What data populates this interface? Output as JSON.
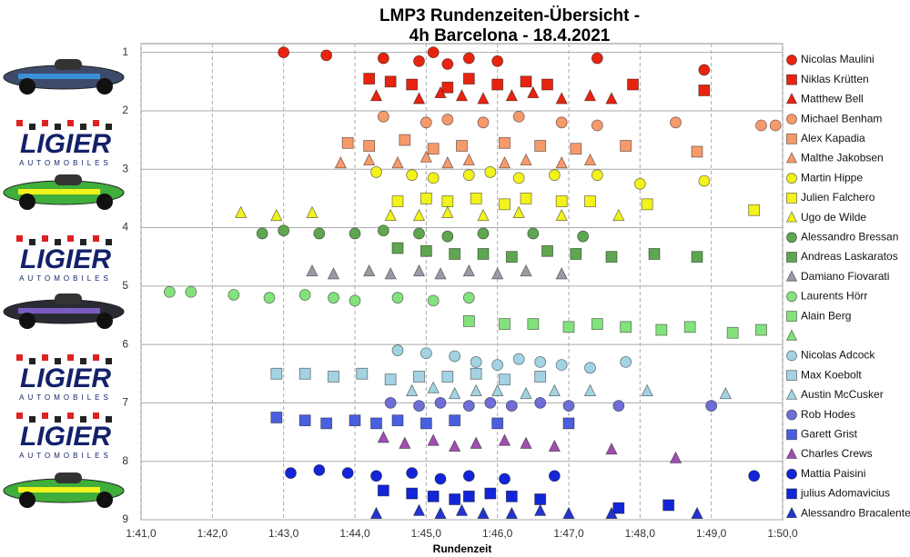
{
  "chart_data": {
    "type": "scatter",
    "title": "LMP3 Rundenzeiten-Übersicht -",
    "subtitle": "4h Barcelona - 18.4.2021",
    "x_label": "Rundenzeit",
    "logo_text": "LIGIER",
    "logo_subtext": "AUTOMOBILES",
    "xlim": [
      101,
      110
    ],
    "xticks": [
      {
        "value": 101,
        "label": "1:41,0"
      },
      {
        "value": 102,
        "label": "1:42,0"
      },
      {
        "value": 103,
        "label": "1:43,0"
      },
      {
        "value": 104,
        "label": "1:44,0"
      },
      {
        "value": 105,
        "label": "1:45,0"
      },
      {
        "value": 106,
        "label": "1:46,0"
      },
      {
        "value": 107,
        "label": "1:47,0"
      },
      {
        "value": 108,
        "label": "1:48,0"
      },
      {
        "value": 109,
        "label": "1:49,0"
      },
      {
        "value": 110,
        "label": "1:50,0"
      }
    ],
    "ylim": [
      0.85,
      9
    ],
    "y_inverted": true,
    "yticks": [
      1,
      2,
      3,
      4,
      5,
      6,
      7,
      8,
      9
    ],
    "grid": true,
    "series": [
      {
        "name": "Nicolas Maulini",
        "color": "#e8230f",
        "marker": "circle",
        "x": [
          103.0,
          103.6,
          104.4,
          104.9,
          105.1,
          105.3,
          105.6,
          106.0,
          107.4,
          108.9
        ],
        "values": [
          1.0,
          1.05,
          1.1,
          1.15,
          1.0,
          1.2,
          1.1,
          1.15,
          1.1,
          1.3
        ]
      },
      {
        "name": "Niklas Krütten",
        "color": "#e8230f",
        "marker": "square",
        "x": [
          104.5,
          104.8,
          105.3,
          105.6,
          106.0,
          106.4,
          106.7,
          107.9,
          108.9,
          104.2
        ],
        "values": [
          1.5,
          1.55,
          1.6,
          1.45,
          1.55,
          1.5,
          1.55,
          1.55,
          1.65,
          1.45
        ]
      },
      {
        "name": "Matthew Bell",
        "color": "#e8230f",
        "marker": "triangle",
        "x": [
          104.3,
          104.9,
          105.2,
          105.5,
          105.8,
          106.2,
          106.5,
          106.9,
          107.3,
          107.6
        ],
        "values": [
          1.75,
          1.8,
          1.7,
          1.75,
          1.8,
          1.75,
          1.7,
          1.8,
          1.75,
          1.8
        ]
      },
      {
        "name": "Michael Benham",
        "color": "#f69a6c",
        "marker": "circle",
        "x": [
          104.4,
          105.0,
          105.3,
          105.8,
          106.3,
          106.9,
          107.4,
          108.5,
          109.7,
          109.9
        ],
        "values": [
          2.1,
          2.2,
          2.15,
          2.2,
          2.1,
          2.2,
          2.25,
          2.2,
          2.25,
          2.25
        ]
      },
      {
        "name": "Alex Kapadia",
        "color": "#f69a6c",
        "marker": "square",
        "x": [
          103.9,
          104.2,
          104.7,
          105.1,
          105.5,
          106.1,
          106.6,
          107.1,
          107.8,
          108.8
        ],
        "values": [
          2.55,
          2.6,
          2.5,
          2.65,
          2.6,
          2.55,
          2.6,
          2.65,
          2.6,
          2.7
        ]
      },
      {
        "name": "Malthe Jakobsen",
        "color": "#f69a6c",
        "marker": "triangle",
        "x": [
          103.8,
          104.2,
          104.6,
          105.0,
          105.3,
          105.6,
          106.1,
          106.4,
          106.9,
          107.3
        ],
        "values": [
          2.9,
          2.85,
          2.9,
          2.8,
          2.9,
          2.85,
          2.9,
          2.85,
          2.9,
          2.85
        ]
      },
      {
        "name": "Martin Hippe",
        "color": "#f2f21c",
        "marker": "circle",
        "x": [
          104.3,
          104.8,
          105.1,
          105.6,
          105.9,
          106.3,
          106.8,
          107.4,
          108.0,
          108.9
        ],
        "values": [
          3.05,
          3.1,
          3.15,
          3.1,
          3.05,
          3.15,
          3.1,
          3.1,
          3.25,
          3.2
        ]
      },
      {
        "name": "Julien Falchero",
        "color": "#f2f21c",
        "marker": "square",
        "x": [
          104.6,
          105.0,
          105.3,
          105.7,
          106.1,
          106.4,
          106.9,
          107.3,
          108.1,
          109.6
        ],
        "values": [
          3.55,
          3.5,
          3.55,
          3.5,
          3.6,
          3.5,
          3.55,
          3.55,
          3.6,
          3.7
        ]
      },
      {
        "name": "Ugo de Wilde",
        "color": "#f2f21c",
        "marker": "triangle",
        "x": [
          102.4,
          102.9,
          103.4,
          104.5,
          104.9,
          105.3,
          105.8,
          106.3,
          106.9,
          107.7
        ],
        "values": [
          3.75,
          3.8,
          3.75,
          3.8,
          3.8,
          3.75,
          3.8,
          3.75,
          3.8,
          3.8
        ]
      },
      {
        "name": "Alessandro Bressan",
        "color": "#5fa650",
        "marker": "circle",
        "x": [
          102.7,
          103.0,
          103.5,
          104.0,
          104.4,
          104.9,
          105.3,
          105.8,
          106.5,
          107.2
        ],
        "values": [
          4.1,
          4.05,
          4.1,
          4.1,
          4.05,
          4.1,
          4.15,
          4.1,
          4.1,
          4.15
        ]
      },
      {
        "name": "Andreas Laskaratos",
        "color": "#5fa650",
        "marker": "square",
        "x": [
          104.6,
          105.0,
          105.4,
          105.8,
          106.2,
          106.7,
          107.1,
          107.6,
          108.2,
          108.8
        ],
        "values": [
          4.35,
          4.4,
          4.45,
          4.45,
          4.5,
          4.4,
          4.45,
          4.5,
          4.45,
          4.5
        ]
      },
      {
        "name": "Damiano Fiovarati",
        "color": "#9a9aa6",
        "marker": "triangle",
        "x": [
          103.4,
          103.7,
          104.2,
          104.5,
          104.9,
          105.2,
          105.6,
          106.0,
          106.4,
          106.9
        ],
        "values": [
          4.75,
          4.8,
          4.75,
          4.8,
          4.75,
          4.8,
          4.75,
          4.8,
          4.75,
          4.8
        ]
      },
      {
        "name": "Laurents Hörr",
        "color": "#84e27c",
        "marker": "circle",
        "x": [
          101.4,
          101.7,
          102.3,
          102.8,
          103.3,
          103.7,
          104.0,
          104.6,
          105.1,
          105.6
        ],
        "values": [
          5.1,
          5.1,
          5.15,
          5.2,
          5.15,
          5.2,
          5.25,
          5.2,
          5.25,
          5.2
        ]
      },
      {
        "name": "Alain Berg",
        "color": "#84e27c",
        "marker": "square",
        "x": [
          105.6,
          106.1,
          106.5,
          107.0,
          107.4,
          107.8,
          108.3,
          108.7,
          109.3,
          109.7
        ],
        "values": [
          5.6,
          5.65,
          5.65,
          5.7,
          5.65,
          5.7,
          5.75,
          5.7,
          5.8,
          5.75
        ]
      },
      {
        "name": null,
        "color": "#84e27c",
        "marker": "triangle",
        "x": [],
        "values": []
      },
      {
        "name": "Nicolas Adcock",
        "color": "#a3d3e2",
        "marker": "circle",
        "x": [
          104.6,
          105.0,
          105.4,
          105.7,
          106.0,
          106.3,
          106.6,
          106.9,
          107.3,
          107.8
        ],
        "values": [
          6.1,
          6.15,
          6.2,
          6.3,
          6.35,
          6.25,
          6.3,
          6.35,
          6.4,
          6.3
        ]
      },
      {
        "name": "Max Koebolt",
        "color": "#a3d3e2",
        "marker": "square",
        "x": [
          102.9,
          103.3,
          103.7,
          104.1,
          104.5,
          104.9,
          105.3,
          105.7,
          106.1,
          106.6
        ],
        "values": [
          6.5,
          6.5,
          6.55,
          6.5,
          6.6,
          6.55,
          6.55,
          6.5,
          6.6,
          6.55
        ]
      },
      {
        "name": "Austin McCusker",
        "color": "#a3d3e2",
        "marker": "triangle",
        "x": [
          104.8,
          105.1,
          105.4,
          105.7,
          106.0,
          106.4,
          106.8,
          107.3,
          108.1,
          109.2
        ],
        "values": [
          6.8,
          6.75,
          6.85,
          6.8,
          6.8,
          6.85,
          6.8,
          6.8,
          6.8,
          6.85
        ]
      },
      {
        "name": "Rob Hodes",
        "color": "#6e6ed6",
        "marker": "circle",
        "x": [
          104.5,
          104.9,
          105.2,
          105.6,
          105.9,
          106.2,
          106.6,
          107.0,
          107.7,
          109.0
        ],
        "values": [
          7.0,
          7.05,
          7.0,
          7.05,
          7.0,
          7.05,
          7.0,
          7.05,
          7.05,
          7.05
        ]
      },
      {
        "name": "Garett Grist",
        "color": "#4a5fe0",
        "marker": "square",
        "x": [
          102.9,
          103.3,
          103.6,
          104.0,
          104.3,
          104.6,
          105.0,
          105.4,
          106.0,
          107.0
        ],
        "values": [
          7.25,
          7.3,
          7.35,
          7.3,
          7.35,
          7.3,
          7.35,
          7.3,
          7.35,
          7.35
        ]
      },
      {
        "name": "Charles Crews",
        "color": "#a04eb0",
        "marker": "triangle",
        "x": [
          104.4,
          104.7,
          105.1,
          105.4,
          105.7,
          106.1,
          106.4,
          106.8,
          107.6,
          108.5
        ],
        "values": [
          7.6,
          7.7,
          7.65,
          7.75,
          7.7,
          7.65,
          7.7,
          7.75,
          7.8,
          7.95
        ]
      },
      {
        "name": "Mattia Paisini",
        "color": "#1225d8",
        "marker": "circle",
        "x": [
          103.1,
          103.5,
          103.9,
          104.3,
          104.8,
          105.2,
          105.6,
          106.1,
          106.8,
          109.6
        ],
        "values": [
          8.2,
          8.15,
          8.2,
          8.25,
          8.2,
          8.3,
          8.25,
          8.3,
          8.25,
          8.25
        ]
      },
      {
        "name": "julius Adomavicius",
        "color": "#1225d8",
        "marker": "square",
        "x": [
          104.4,
          104.8,
          105.1,
          105.4,
          105.6,
          105.9,
          106.2,
          106.6,
          107.7,
          108.4
        ],
        "values": [
          8.5,
          8.55,
          8.6,
          8.65,
          8.6,
          8.55,
          8.6,
          8.65,
          8.8,
          8.75
        ]
      },
      {
        "name": "Alessandro Bracalente",
        "color": "#2233d0",
        "marker": "triangle",
        "x": [
          104.3,
          104.9,
          105.2,
          105.5,
          105.8,
          106.2,
          106.6,
          107.0,
          107.6,
          108.8
        ],
        "values": [
          8.9,
          8.85,
          8.9,
          8.85,
          8.9,
          8.9,
          8.85,
          8.9,
          8.9,
          8.9
        ]
      }
    ]
  }
}
